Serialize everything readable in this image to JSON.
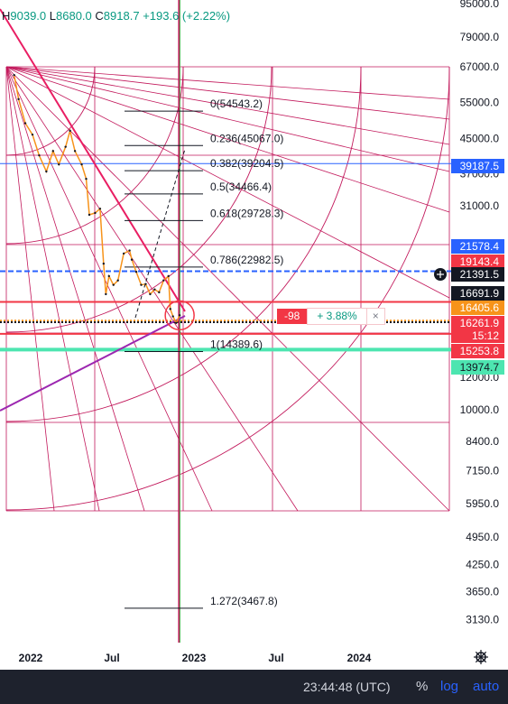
{
  "ohlc": {
    "h_label": "H",
    "h": "9039.0",
    "l_label": "L",
    "l": "8680.0",
    "c_label": "C",
    "c": "8918.7",
    "change": "+193.6 (+2.22%)"
  },
  "chart_data": {
    "type": "line",
    "scale": "log",
    "title": "",
    "xlabel": "",
    "ylabel": "",
    "x_ticks": [
      "2022",
      "Jul",
      "2023",
      "Jul",
      "2024"
    ],
    "y_ticks": [
      95000.0,
      79000.0,
      67000.0,
      55000.0,
      45000.0,
      37000.0,
      31000.0,
      12000.0,
      10000.0,
      8400.0,
      7150.0,
      5950.0,
      4950.0,
      4250.0,
      3650.0,
      3130.0
    ],
    "y_tick_labels": [
      "95000.0",
      "79000.0",
      "67000.0",
      "55000.0",
      "45000.0",
      "37000.0",
      "31000.0",
      "12000.0",
      "10000.0",
      "8400.0",
      "7150.0",
      "5950.0",
      "4950.0",
      "4250.0",
      "3650.0",
      "3130.0"
    ],
    "ylim": [
      2750,
      105000
    ],
    "xlim": [
      "2021-11-20",
      "2024-08-01"
    ],
    "series": [
      {
        "type": "price",
        "color": "#f7931a",
        "x": [
          "2021-11-25",
          "2021-12-05",
          "2021-12-20",
          "2022-01-05",
          "2022-01-20",
          "2022-02-05",
          "2022-02-20",
          "2022-03-05",
          "2022-03-20",
          "2022-03-30",
          "2022-04-10",
          "2022-04-25",
          "2022-05-05",
          "2022-05-12",
          "2022-05-25",
          "2022-06-05",
          "2022-06-13",
          "2022-06-18",
          "2022-06-25",
          "2022-07-05",
          "2022-07-15",
          "2022-07-28",
          "2022-08-10",
          "2022-08-15",
          "2022-08-25",
          "2022-09-05",
          "2022-09-15",
          "2022-09-25",
          "2022-10-05",
          "2022-10-15",
          "2022-10-25",
          "2022-11-05",
          "2022-11-09",
          "2022-11-15",
          "2022-11-22",
          "2022-11-30"
        ],
        "y": [
          64000,
          56000,
          49000,
          46000,
          41000,
          37500,
          42000,
          39000,
          43000,
          47000,
          42000,
          39000,
          36000,
          29500,
          29800,
          30500,
          22500,
          19000,
          21000,
          20000,
          20500,
          23800,
          24200,
          23000,
          21500,
          20000,
          20100,
          19000,
          19500,
          19200,
          20500,
          21000,
          17500,
          16800,
          16200,
          16900
        ]
      }
    ],
    "fib_levels": [
      {
        "label": "0(54543.2)",
        "value": 54543.2
      },
      {
        "label": "0.236(45067.0)",
        "value": 45067.0
      },
      {
        "label": "0.382(39204.5)",
        "value": 39204.5
      },
      {
        "label": "0.5(34466.4)",
        "value": 34466.4
      },
      {
        "label": "0.618(29728.3)",
        "value": 29728.3
      },
      {
        "label": "0.786(22982.5)",
        "value": 22982.5
      },
      {
        "label": "1(14389.6)",
        "value": 14389.6
      },
      {
        "label": "1.272(3467.8)",
        "value": 3467.8
      }
    ],
    "price_badges": [
      {
        "label": "39187.5",
        "value": 39187.5,
        "bg": "#2962ff",
        "fg": "#ffffff"
      },
      {
        "label": "21578.4",
        "value": 21578.4,
        "bg": "#2962ff",
        "fg": "#ffffff"
      },
      {
        "label": "19143.4",
        "value": 19143.4,
        "bg": "#f23645",
        "fg": "#ffffff"
      },
      {
        "label": "21391.5",
        "value": 21391.5,
        "bg": "#131722",
        "fg": "#ffffff"
      },
      {
        "label": "16691.9",
        "value": 16691.9,
        "bg": "#131722",
        "fg": "#ffffff"
      },
      {
        "label": "16405.6",
        "value": 16405.6,
        "bg": "#f7931a",
        "fg": "#ffffff"
      },
      {
        "label": "16261.9",
        "value": 16261.9,
        "bg": "#f23645",
        "fg": "#ffffff"
      },
      {
        "label": "15:12",
        "value": 15500,
        "bg": "#f23645",
        "fg": "#ffffff"
      },
      {
        "label": "15253.8",
        "value": 14700,
        "bg": "#f23645",
        "fg": "#ffffff"
      },
      {
        "label": "13974.7",
        "value": 13974.7,
        "bg": "#4de5b0",
        "fg": "#131722"
      }
    ],
    "horizontal_lines": [
      {
        "value": 39187.5,
        "color": "#2962ff",
        "style": "solid",
        "width": 1
      },
      {
        "value": 21578.4,
        "color": "#2962ff",
        "style": "dashed",
        "width": 2
      },
      {
        "value": 18200,
        "color": "#f23645",
        "style": "solid",
        "width": 2
      },
      {
        "value": 16405.6,
        "color": "#f7931a",
        "style": "dotted",
        "width": 2
      },
      {
        "value": 16261.9,
        "color": "#131722",
        "style": "dotted",
        "width": 2
      },
      {
        "value": 15253.8,
        "color": "#f23645",
        "style": "solid",
        "width": 2
      },
      {
        "value": 13974.7,
        "color": "#4de5b0",
        "style": "solid",
        "width": 4
      }
    ],
    "vertical_lines": [
      {
        "date": "2022-11-30",
        "color": "#4caf50"
      },
      {
        "date": "2022-11-28",
        "color": "#c2185b"
      }
    ],
    "gann_grid_color": "#c2185b",
    "trendline_color": "#e91e63",
    "support_line_color": "#9c27b0"
  },
  "position": {
    "count": "-98",
    "pnl": "+ 3.88%",
    "close": "×"
  },
  "bottom_bar": {
    "clock": "23:44:48 (UTC)",
    "percent": "%",
    "log": "log",
    "auto": "auto"
  },
  "colors": {
    "background": "#ffffff",
    "bottom_bar_bg": "#1e222d",
    "accent": "#2962ff",
    "up": "#089981",
    "down": "#f23645"
  }
}
